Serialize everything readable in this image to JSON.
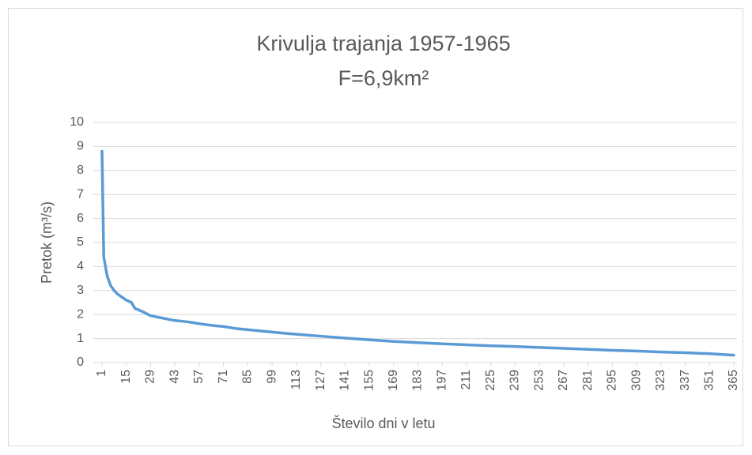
{
  "chart_data": {
    "type": "line",
    "title": "Krivulja trajanja 1957-1965",
    "subtitle": "F=6,9km²",
    "xlabel": "Število dni v letu",
    "ylabel": "Pretok (m³/s)",
    "color": "#5b9bd5",
    "grid": true,
    "xlim": [
      1,
      365
    ],
    "xticks": [
      1,
      15,
      29,
      43,
      57,
      71,
      85,
      99,
      113,
      127,
      141,
      155,
      169,
      183,
      197,
      211,
      225,
      239,
      253,
      267,
      281,
      295,
      309,
      323,
      337,
      351,
      365
    ],
    "ylim": [
      0,
      10
    ],
    "yticks": [
      0,
      1,
      2,
      3,
      4,
      5,
      6,
      7,
      8,
      9,
      10
    ],
    "x": [
      1,
      2,
      4,
      6,
      8,
      10,
      13,
      15,
      18,
      20,
      22,
      25,
      29,
      36,
      43,
      50,
      57,
      64,
      71,
      78,
      85,
      92,
      99,
      106,
      113,
      120,
      127,
      141,
      155,
      169,
      183,
      197,
      211,
      225,
      239,
      253,
      267,
      281,
      295,
      309,
      323,
      337,
      351,
      365
    ],
    "values": [
      8.8,
      4.4,
      3.6,
      3.2,
      3.0,
      2.85,
      2.7,
      2.6,
      2.5,
      2.25,
      2.2,
      2.1,
      1.95,
      1.85,
      1.75,
      1.7,
      1.62,
      1.55,
      1.5,
      1.42,
      1.37,
      1.32,
      1.27,
      1.22,
      1.18,
      1.14,
      1.1,
      1.02,
      0.95,
      0.88,
      0.83,
      0.78,
      0.74,
      0.7,
      0.67,
      0.63,
      0.59,
      0.55,
      0.51,
      0.48,
      0.44,
      0.41,
      0.37,
      0.31
    ]
  }
}
